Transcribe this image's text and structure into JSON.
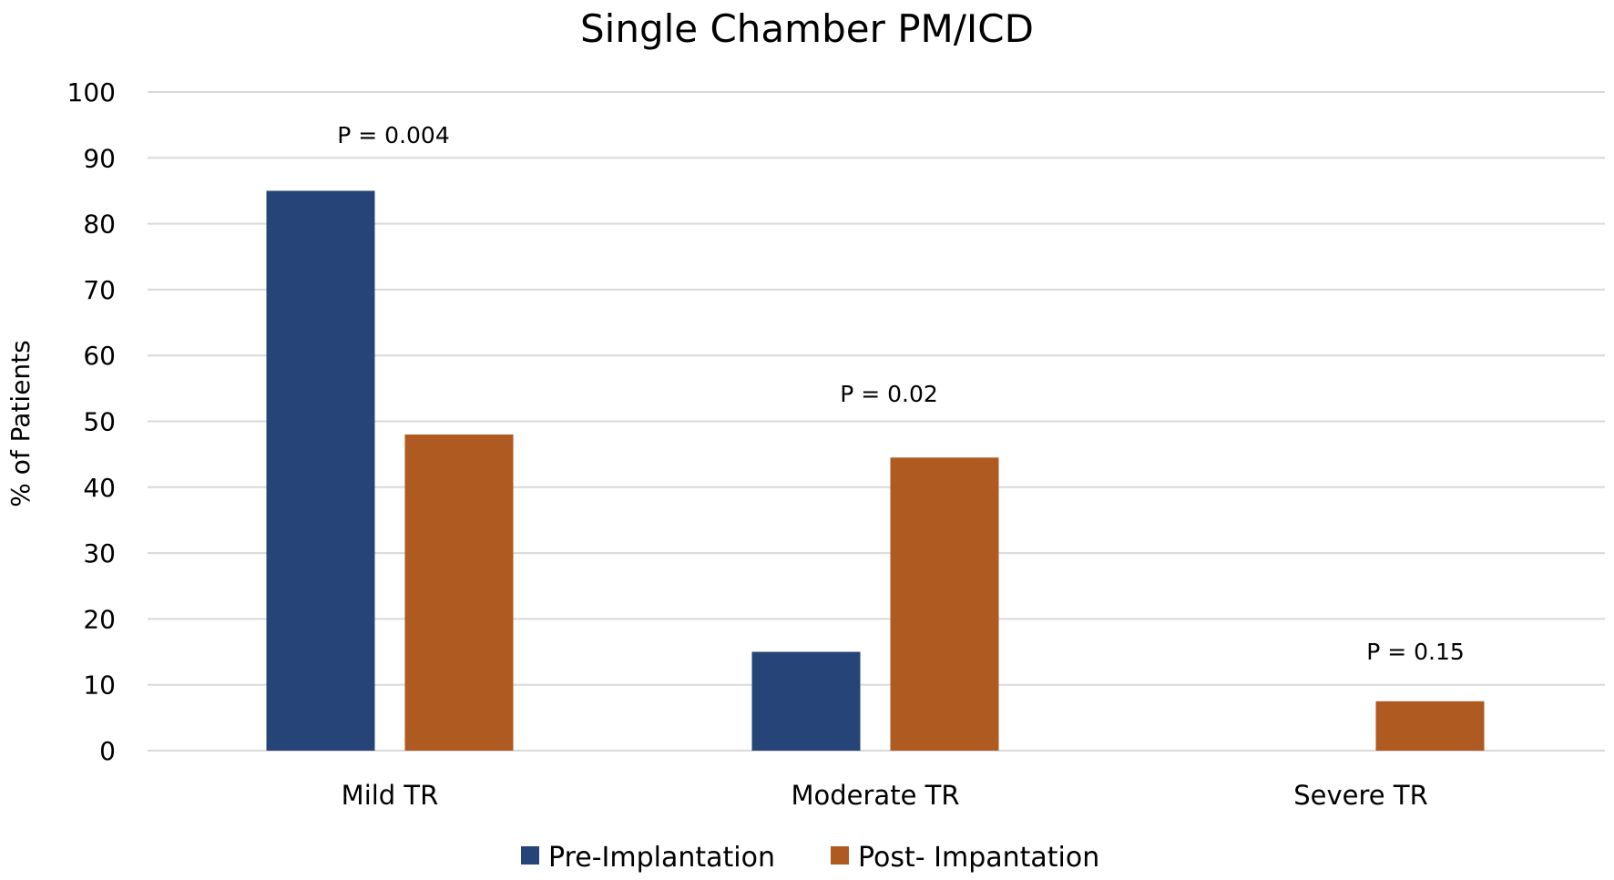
{
  "chart_data": {
    "type": "bar",
    "title": "Single Chamber PM/ICD",
    "xlabel": "",
    "ylabel": "% of Patients",
    "ylim": [
      0,
      100
    ],
    "yticks": [
      "0",
      "10",
      "20",
      "30",
      "40",
      "50",
      "60",
      "70",
      "80",
      "90",
      "100"
    ],
    "grid": true,
    "legend_position": "bottom",
    "categories": [
      "Mild TR",
      "Moderate TR",
      "Severe TR"
    ],
    "series": [
      {
        "name": "Pre-Implantation",
        "color": "#264478",
        "values": [
          85,
          15,
          0
        ]
      },
      {
        "name": "Post- Impantation",
        "color": "#ae5a21",
        "values": [
          48,
          44.5,
          7.5
        ]
      }
    ],
    "annotations": [
      "P = 0.004",
      "P = 0.02",
      "P = 0.15"
    ]
  }
}
